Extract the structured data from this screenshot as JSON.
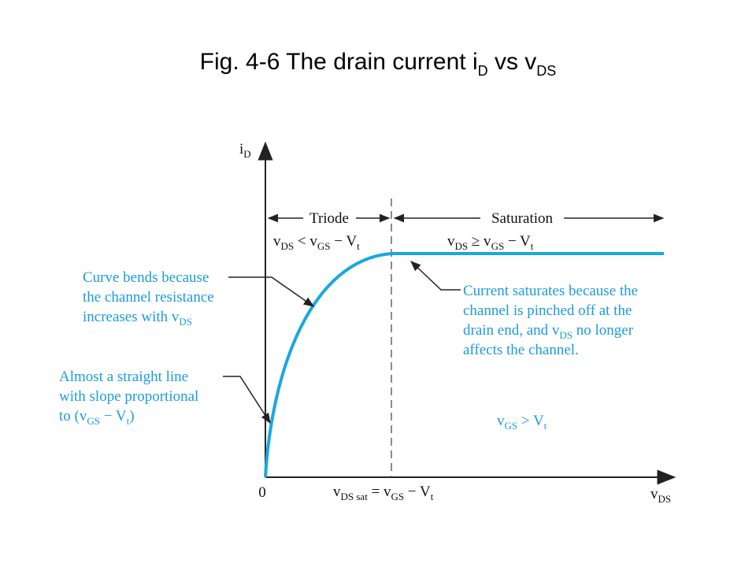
{
  "title": [
    "Fig. 4-6  The drain current i",
    "D",
    " vs v",
    "DS"
  ],
  "y_axis_label": [
    "i",
    "D"
  ],
  "x_axis_label": [
    "v",
    "DS"
  ],
  "origin_label": "0",
  "triode_label": "Triode",
  "saturation_label": "Saturation",
  "triode_condition": [
    "v",
    "DS",
    " < v",
    "GS",
    " − V",
    "t"
  ],
  "saturation_condition": [
    "v",
    "DS",
    " ≥ v",
    "GS",
    " − V",
    "t"
  ],
  "saturation_point_label": [
    "v",
    "DS sat",
    " = v",
    "GS",
    " − V",
    "t"
  ],
  "gate_condition": [
    "v",
    "GS",
    " > V",
    "t"
  ],
  "annotations": [
    {
      "lines": [
        [
          "Curve bends because"
        ],
        [
          "the channel resistance"
        ],
        [
          "increases with v",
          "DS"
        ]
      ]
    },
    {
      "lines": [
        [
          "Almost a straight line"
        ],
        [
          "with slope proportional"
        ],
        [
          "to (v",
          "GS",
          " − V",
          "t",
          ")"
        ]
      ]
    },
    {
      "lines": [
        [
          "Current saturates because the"
        ],
        [
          "channel is pinched off at the"
        ],
        [
          "drain end, and v",
          "DS",
          " no longer"
        ],
        [
          "affects the channel."
        ]
      ]
    }
  ]
}
